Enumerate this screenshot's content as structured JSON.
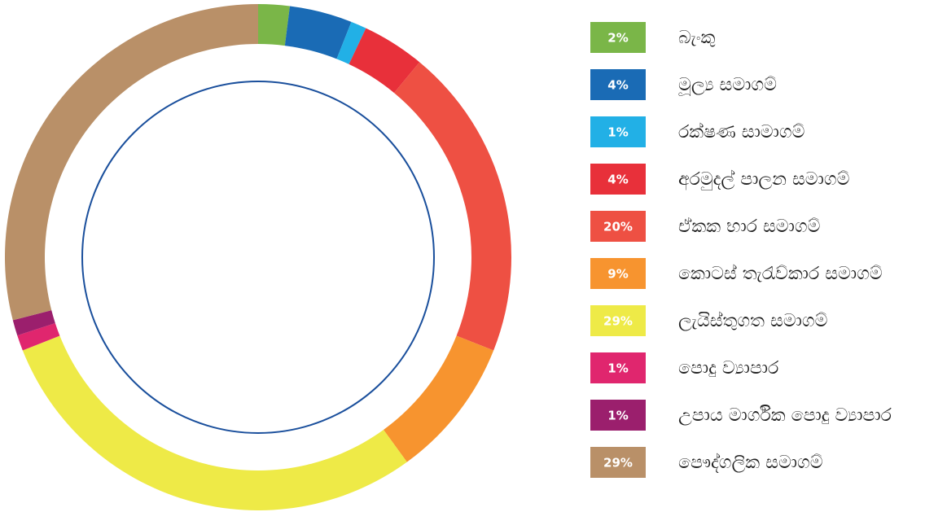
{
  "chart_data": {
    "type": "donut",
    "categories": [
      "බැංකු",
      "මූල්‍ය සමාගම්",
      "රක්ෂණ සාමාගම්",
      "අරමුදල් පාලන සමාගම්",
      "ඒකක භාර සමාගම්",
      "කොටස් තැරැව්කාර සමාගම්",
      "ලැයිස්තුගත සමාගම්",
      "පොදු ව්‍යාපාර",
      "උපාය මාර්ගික පොදු ව්‍යාපාර",
      "පෞද්ගලික සමාගම්"
    ],
    "values": [
      2,
      4,
      1,
      4,
      20,
      9,
      29,
      1,
      1,
      29
    ],
    "value_labels": [
      "2%",
      "4%",
      "1%",
      "4%",
      "20%",
      "9%",
      "29%",
      "1%",
      "1%",
      "29%"
    ],
    "colors": [
      "#7ab648",
      "#1a6bb5",
      "#22b0e6",
      "#e8303a",
      "#ee5043",
      "#f7942f",
      "#eeea47",
      "#e0266e",
      "#9b1f6d",
      "#b99068"
    ]
  }
}
